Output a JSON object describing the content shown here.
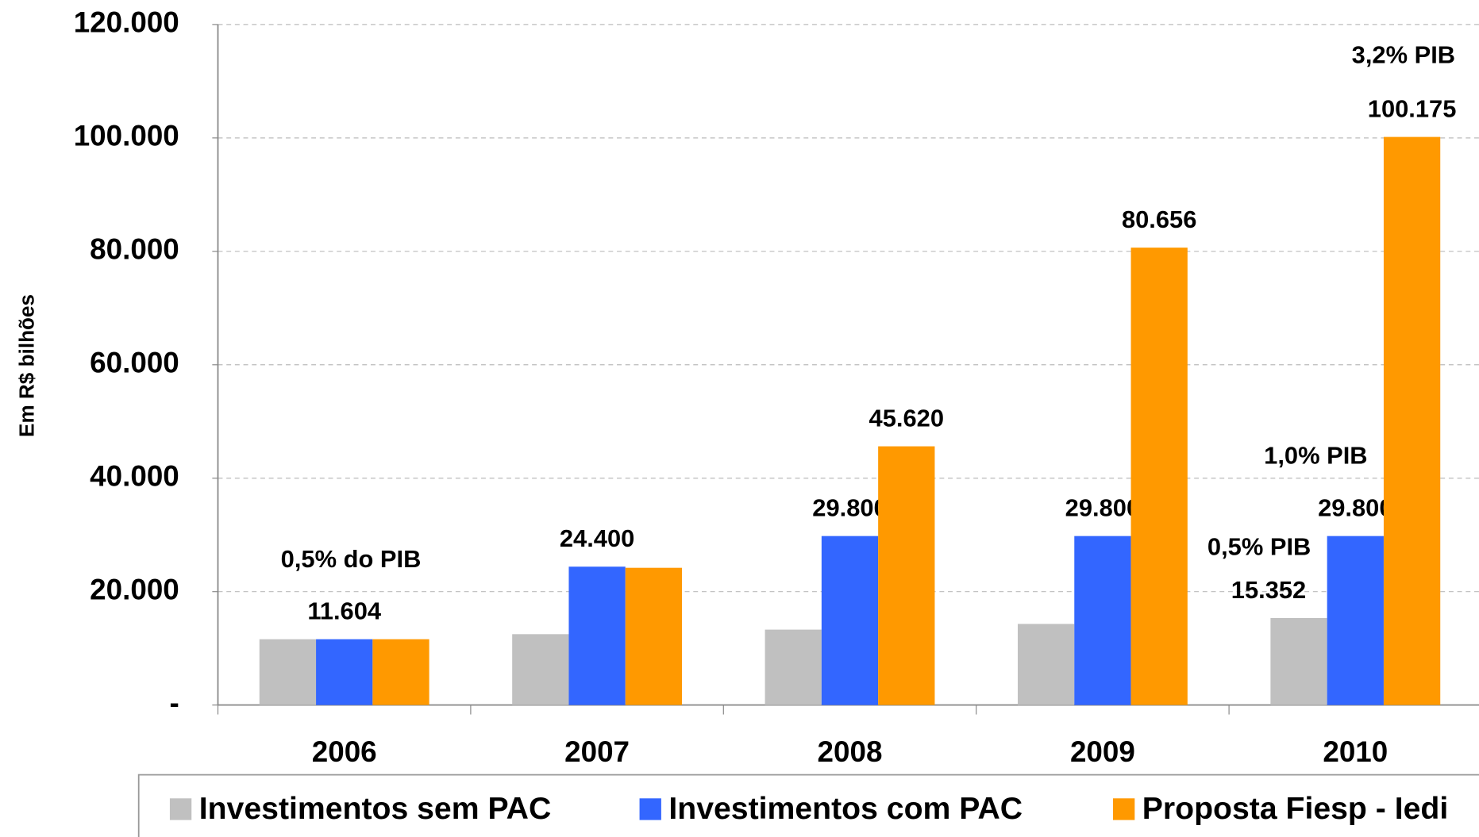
{
  "chart_data": {
    "type": "bar",
    "y_axis_label": "Em R$ bilhões",
    "categories": [
      "2006",
      "2007",
      "2008",
      "2009",
      "2010"
    ],
    "series": [
      {
        "name": "Investimentos sem PAC",
        "color": "#c0c0c0",
        "values": [
          11604,
          12500,
          13300,
          14300,
          15352
        ],
        "value_labels": [
          null,
          null,
          null,
          null,
          "15.352"
        ]
      },
      {
        "name": "Investimentos com PAC",
        "color": "#3366ff",
        "values": [
          11604,
          24400,
          29800,
          29800,
          29800
        ],
        "value_labels": [
          "11.604",
          "24.400",
          "29.800",
          "29.800",
          "29.800"
        ]
      },
      {
        "name": "Proposta Fiesp - Iedi",
        "color": "#ff9900",
        "values": [
          11604,
          24200,
          45620,
          80656,
          100175
        ],
        "value_labels": [
          null,
          null,
          "45.620",
          "80.656",
          "100.175"
        ]
      }
    ],
    "annotations": [
      "0,5% do PIB",
      "1,0% PIB",
      "0,5% PIB",
      "3,2% PIB"
    ],
    "ylim": [
      0,
      120000
    ],
    "yticks": [
      {
        "value": 0,
        "label": "-"
      },
      {
        "value": 20000,
        "label": "20.000"
      },
      {
        "value": 40000,
        "label": "40.000"
      },
      {
        "value": 60000,
        "label": "60.000"
      },
      {
        "value": 80000,
        "label": "80.000"
      },
      {
        "value": 100000,
        "label": "100.000"
      },
      {
        "value": 120000,
        "label": "120.000"
      }
    ],
    "grid": true
  }
}
